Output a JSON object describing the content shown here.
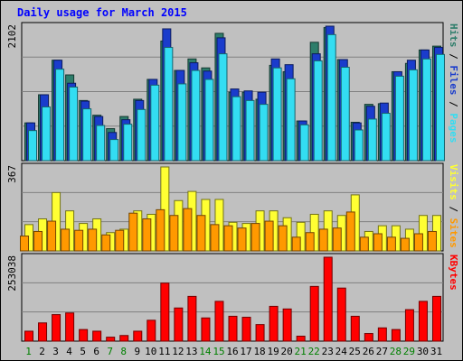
{
  "title": "Daily usage for March 2015",
  "chart_data": [
    {
      "type": "bar",
      "title": "Daily usage for March 2015",
      "categories": [
        "1",
        "2",
        "3",
        "4",
        "5",
        "6",
        "7",
        "8",
        "9",
        "10",
        "11",
        "12",
        "13",
        "14",
        "15",
        "16",
        "17",
        "18",
        "19",
        "20",
        "21",
        "22",
        "23",
        "24",
        "25",
        "26",
        "27",
        "28",
        "29",
        "30",
        "31"
      ],
      "weekend_days": [
        "1",
        "7",
        "8",
        "14",
        "15",
        "21",
        "22",
        "28",
        "29"
      ],
      "ymax_label": "2102",
      "ylim": [
        0,
        2102
      ],
      "legend": [
        "Pages",
        "Files",
        "Hits"
      ],
      "series": [
        {
          "name": "Hits",
          "color": "#2d7d6a",
          "values": [
            590,
            1030,
            1570,
            1340,
            940,
            710,
            500,
            690,
            960,
            1270,
            1870,
            1410,
            1590,
            1450,
            1990,
            1070,
            1070,
            960,
            1490,
            1390,
            620,
            1850,
            2080,
            1580,
            600,
            880,
            890,
            1390,
            1520,
            1730,
            1790
          ]
        },
        {
          "name": "Files",
          "color": "#1a3ccc",
          "values": [
            590,
            1030,
            1570,
            1210,
            930,
            690,
            440,
            640,
            940,
            1270,
            2060,
            1410,
            1530,
            1400,
            1920,
            1120,
            1090,
            1070,
            1590,
            1500,
            620,
            1670,
            2102,
            1580,
            590,
            850,
            900,
            1390,
            1570,
            1730,
            1770
          ]
        },
        {
          "name": "Pages",
          "color": "#33ddf2",
          "values": [
            470,
            840,
            1430,
            1150,
            810,
            550,
            330,
            570,
            800,
            1180,
            1770,
            1200,
            1410,
            1270,
            1670,
            1000,
            940,
            880,
            1450,
            1280,
            560,
            1560,
            1970,
            1460,
            480,
            650,
            740,
            1320,
            1420,
            1590,
            1660
          ]
        }
      ]
    },
    {
      "type": "bar",
      "categories": [
        "1",
        "2",
        "3",
        "4",
        "5",
        "6",
        "7",
        "8",
        "9",
        "10",
        "11",
        "12",
        "13",
        "14",
        "15",
        "16",
        "17",
        "18",
        "19",
        "20",
        "21",
        "22",
        "23",
        "24",
        "25",
        "26",
        "27",
        "28",
        "29",
        "30",
        "31"
      ],
      "ymax_label": "367",
      "ylim": [
        0,
        367
      ],
      "legend": [
        "Sites",
        "Visits"
      ],
      "series": [
        {
          "name": "Visits",
          "color": "#ffff33",
          "values": [
            115,
            140,
            255,
            175,
            120,
            140,
            80,
            95,
            175,
            160,
            367,
            220,
            260,
            225,
            225,
            125,
            120,
            175,
            175,
            145,
            125,
            160,
            175,
            155,
            245,
            85,
            110,
            110,
            95,
            155,
            155
          ]
        },
        {
          "name": "Sites",
          "color": "#ff9900",
          "values": [
            65,
            85,
            130,
            95,
            90,
            95,
            70,
            90,
            165,
            140,
            180,
            155,
            185,
            155,
            115,
            110,
            100,
            120,
            130,
            110,
            60,
            80,
            95,
            100,
            170,
            60,
            75,
            60,
            55,
            75,
            85
          ]
        }
      ]
    },
    {
      "type": "bar",
      "categories": [
        "1",
        "2",
        "3",
        "4",
        "5",
        "6",
        "7",
        "8",
        "9",
        "10",
        "11",
        "12",
        "13",
        "14",
        "15",
        "16",
        "17",
        "18",
        "19",
        "20",
        "21",
        "22",
        "23",
        "24",
        "25",
        "26",
        "27",
        "28",
        "29",
        "30",
        "31"
      ],
      "ymax_label": "253038",
      "ylim": [
        0,
        253038
      ],
      "legend": [
        "KBytes"
      ],
      "series": [
        {
          "name": "KBytes",
          "color": "#ff0000",
          "values": [
            30000,
            55000,
            80000,
            85000,
            35000,
            30000,
            12000,
            17000,
            30000,
            63000,
            175000,
            100000,
            135000,
            70000,
            120000,
            75000,
            72000,
            50000,
            105000,
            97000,
            15000,
            165000,
            253038,
            160000,
            75000,
            23000,
            40000,
            35000,
            95000,
            120000,
            135000
          ]
        }
      ]
    }
  ]
}
